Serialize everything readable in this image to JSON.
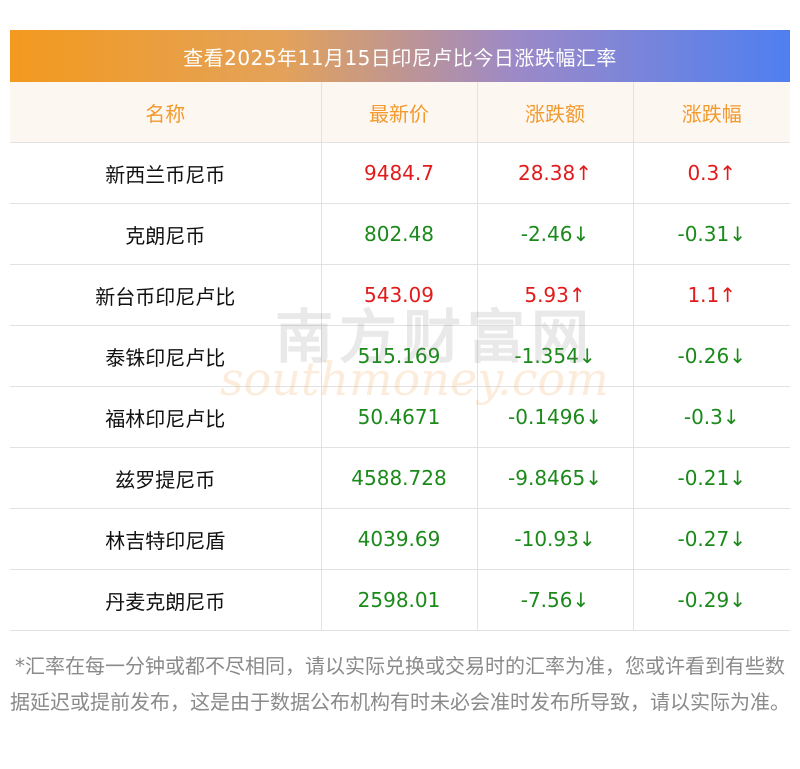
{
  "title": "查看2025年11月15日印尼卢比今日涨跌幅汇率",
  "columns": [
    "名称",
    "最新价",
    "涨跌额",
    "涨跌幅"
  ],
  "rows": [
    {
      "name": "新西兰币尼币",
      "price": "9484.7",
      "change": "28.38↑",
      "pct": "0.3↑",
      "dir": "up"
    },
    {
      "name": "克朗尼币",
      "price": "802.48",
      "change": "-2.46↓",
      "pct": "-0.31↓",
      "dir": "down"
    },
    {
      "name": "新台币印尼卢比",
      "price": "543.09",
      "change": "5.93↑",
      "pct": "1.1↑",
      "dir": "up"
    },
    {
      "name": "泰铢印尼卢比",
      "price": "515.169",
      "change": "-1.354↓",
      "pct": "-0.26↓",
      "dir": "down"
    },
    {
      "name": "福林印尼卢比",
      "price": "50.4671",
      "change": "-0.1496↓",
      "pct": "-0.3↓",
      "dir": "down"
    },
    {
      "name": "兹罗提尼币",
      "price": "4588.728",
      "change": "-9.8465↓",
      "pct": "-0.21↓",
      "dir": "down"
    },
    {
      "name": "林吉特印尼盾",
      "price": "4039.69",
      "change": "-10.93↓",
      "pct": "-0.27↓",
      "dir": "down"
    },
    {
      "name": "丹麦克朗尼币",
      "price": "2598.01",
      "change": "-7.56↓",
      "pct": "-0.29↓",
      "dir": "down"
    }
  ],
  "watermark": {
    "cn": "南方财富网",
    "en": "southmoney.com"
  },
  "footnote": "*汇率在每一分钟或都不尽相同，请以实际兑换或交易时的汇率为准，您或许看到有些数据延迟或提前发布，这是由于数据公布机构有时未必会准时发布所导致，请以实际为准。",
  "colors": {
    "up": "#e11b1b",
    "down": "#1b8a1b",
    "header_text": "#f29a2e",
    "title_gradient_start": "#f39a1e",
    "title_gradient_end": "#4f7ff0"
  }
}
